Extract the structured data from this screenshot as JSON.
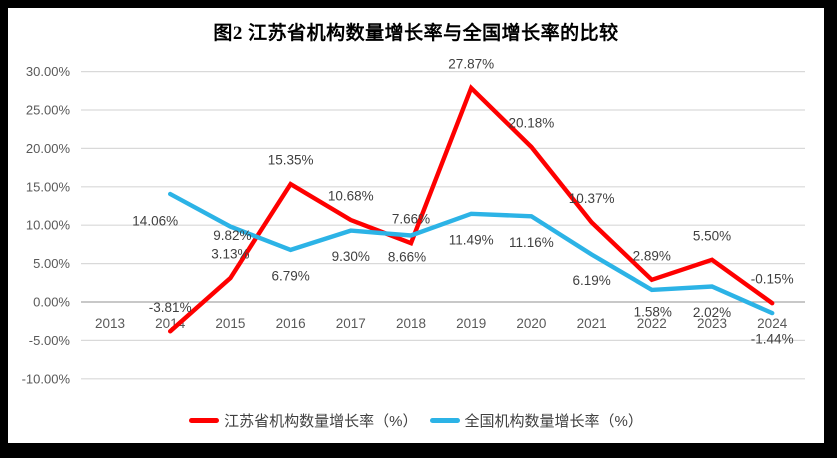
{
  "title": "图2  江苏省机构数量增长率与全国增长率的比较",
  "chart_data": {
    "type": "line",
    "title": "图2  江苏省机构数量增长率与全国增长率的比较",
    "categories": [
      "2013",
      "2014",
      "2015",
      "2016",
      "2017",
      "2018",
      "2019",
      "2020",
      "2021",
      "2022",
      "2023",
      "2024"
    ],
    "series": [
      {
        "name": "江苏省机构数量增长率（%）",
        "color": "#fe0000",
        "label_position": "above",
        "values": [
          null,
          -3.81,
          3.13,
          15.35,
          10.68,
          7.66,
          27.87,
          20.18,
          10.37,
          2.89,
          5.5,
          -0.15
        ],
        "labels": [
          null,
          "-3.81%",
          "3.13%",
          "15.35%",
          "10.68%",
          "7.66%",
          "27.87%",
          "20.18%",
          "10.37%",
          "2.89%",
          "5.50%",
          "-0.15%"
        ]
      },
      {
        "name": "全国机构数量增长率（%）",
        "color": "#2cb3e6",
        "label_position": "below",
        "values": [
          null,
          14.06,
          9.82,
          6.79,
          9.3,
          8.66,
          11.49,
          11.16,
          6.19,
          1.58,
          2.02,
          -1.44
        ],
        "labels": [
          null,
          "14.06%",
          "9.82%",
          "6.79%",
          "9.30%",
          "8.66%",
          "11.49%",
          "11.16%",
          "6.19%",
          "1.58%",
          "2.02%",
          "-1.44%"
        ]
      }
    ],
    "y_axis": {
      "min": -10,
      "max": 30,
      "ticks": [
        30,
        25,
        20,
        15,
        10,
        5,
        0,
        -5,
        -10
      ],
      "tick_labels": [
        "30.00%",
        "25.00%",
        "20.00%",
        "15.00%",
        "10.00%",
        "5.00%",
        "0.00%",
        "-5.00%",
        "-10.00%"
      ]
    },
    "grid": true,
    "legend_position": "bottom",
    "style": {
      "grid_color": "#d9d9d9",
      "axis_line_color": "#a6a6a6",
      "tick_text_color": "#595959",
      "data_label_color": "#3f3f3f",
      "frame_border_color": "#000000",
      "plot_background": "#ffffff"
    }
  }
}
